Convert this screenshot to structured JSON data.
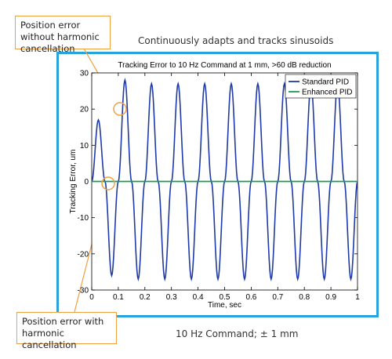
{
  "callouts": {
    "top_text": "Position error without harmonic cancellation",
    "bottom_text": "Position error with harmonic cancellation"
  },
  "captions": {
    "top": "Continuously adapts and tracks sinusoids",
    "bottom": "10 Hz Command; ± 1 mm"
  },
  "colors": {
    "frame_border": "#29a3dc",
    "callout_border": "#f0a040",
    "standard_pid": "#1f3aa8",
    "enhanced_pid": "#1e9a50"
  },
  "chart_data": {
    "type": "line",
    "title": "Tracking Error to 10 Hz Command at 1 mm, >60 dB reduction",
    "xlabel": "Time, sec",
    "ylabel": "Tracking Error, um",
    "xlim": [
      0,
      1
    ],
    "ylim": [
      -30,
      30
    ],
    "xticks": [
      "0",
      "0.1",
      "0.2",
      "0.3",
      "0.4",
      "0.5",
      "0.6",
      "0.7",
      "0.8",
      "0.9",
      "1"
    ],
    "yticks": [
      "30",
      "20",
      "10",
      "0",
      "-10",
      "-20",
      "-30"
    ],
    "grid": false,
    "legend_position": "top-right",
    "series": [
      {
        "name": "Standard PID",
        "x": [
          0,
          0.025,
          0.05,
          0.075,
          0.1,
          0.125,
          0.15,
          0.175,
          0.2,
          0.225,
          0.25,
          0.275,
          0.3,
          0.325,
          0.35,
          0.375,
          0.4,
          0.425,
          0.45,
          0.475,
          0.5,
          0.525,
          0.55,
          0.575,
          0.6,
          0.625,
          0.65,
          0.675,
          0.7,
          0.725,
          0.75,
          0.775,
          0.8,
          0.825,
          0.85,
          0.875,
          0.9,
          0.925,
          0.95,
          0.975,
          1.0
        ],
        "values": [
          0,
          17,
          0,
          -26,
          0,
          28,
          0,
          -27,
          0,
          27,
          0,
          -27,
          0,
          27,
          0,
          -27,
          0,
          27,
          0,
          -27,
          0,
          27,
          0,
          -27,
          0,
          27,
          0,
          -27,
          0,
          27,
          0,
          -27,
          0,
          27,
          0,
          -27,
          0,
          27,
          0,
          -27,
          0
        ]
      },
      {
        "name": "Enhanced PID",
        "x": [
          0,
          1
        ],
        "values": [
          0,
          0
        ]
      }
    ]
  }
}
